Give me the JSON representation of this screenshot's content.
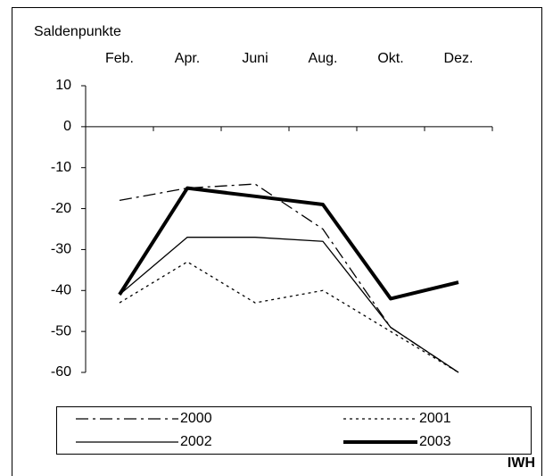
{
  "chart_data": {
    "type": "line",
    "y_label": "Saldenpunkte",
    "source": "IWH",
    "categories": [
      "Feb.",
      "Apr.",
      "Juni",
      "Aug.",
      "Okt.",
      "Dez."
    ],
    "ylim": [
      -60,
      10
    ],
    "yticks": [
      10,
      0,
      -10,
      -20,
      -30,
      -40,
      -50,
      -60
    ],
    "series": [
      {
        "name": "2000",
        "color": "#000000",
        "linestyle": "dashdot",
        "linewidth": 1.3,
        "values": [
          -18,
          -15,
          -14,
          -25,
          -49,
          -60
        ]
      },
      {
        "name": "2001",
        "color": "#000000",
        "linestyle": "dotted",
        "linewidth": 1.3,
        "values": [
          -43,
          -33,
          -43,
          -40,
          -50,
          -60
        ]
      },
      {
        "name": "2002",
        "color": "#000000",
        "linestyle": "solid",
        "linewidth": 1.3,
        "values": [
          -41,
          -27,
          -27,
          -28,
          -49,
          -60
        ]
      },
      {
        "name": "2003",
        "color": "#000000",
        "linestyle": "solid",
        "linewidth": 4,
        "values": [
          -41,
          -15,
          -17,
          -19,
          -42,
          -38
        ]
      }
    ]
  }
}
